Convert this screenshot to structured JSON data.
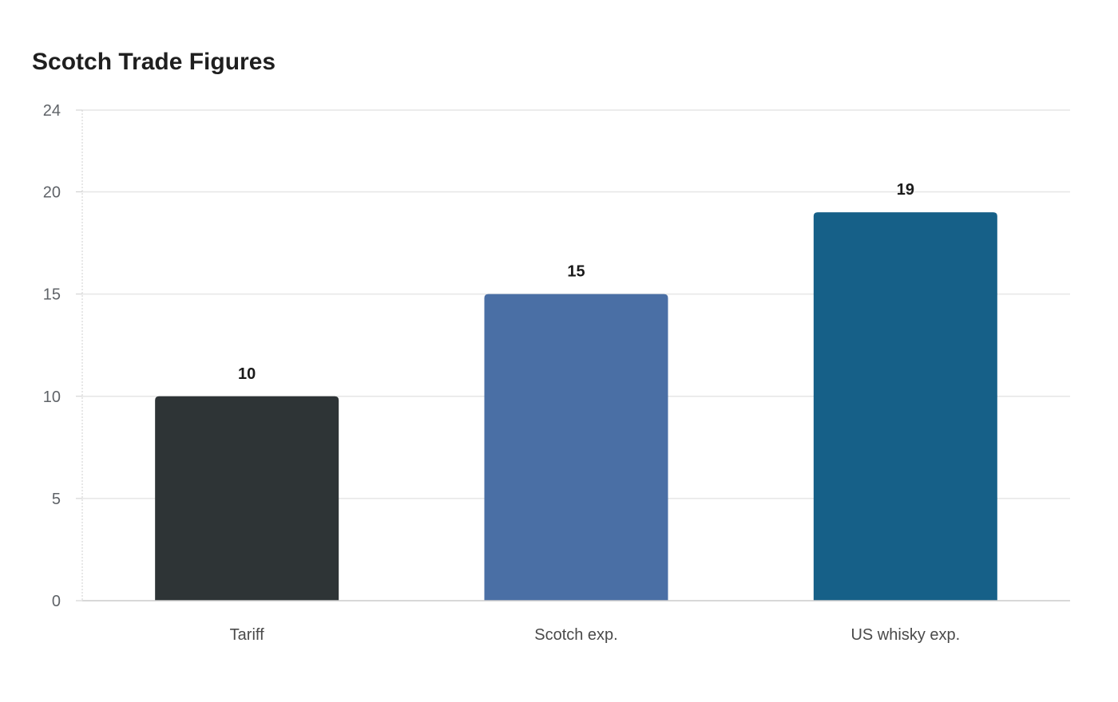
{
  "chart_data": {
    "type": "bar",
    "title": "Scotch Trade Figures",
    "categories": [
      "Tariff",
      "Scotch exp.",
      "US whisky exp."
    ],
    "values": [
      10,
      15,
      19
    ],
    "colors": [
      "#2e3436",
      "#4a6fa5",
      "#166088"
    ],
    "xlabel": "",
    "ylabel": "",
    "ylim": [
      0,
      24
    ],
    "yticks": [
      0,
      5,
      10,
      15,
      20,
      24
    ],
    "grid": true,
    "legend": "none",
    "data_labels": true
  }
}
